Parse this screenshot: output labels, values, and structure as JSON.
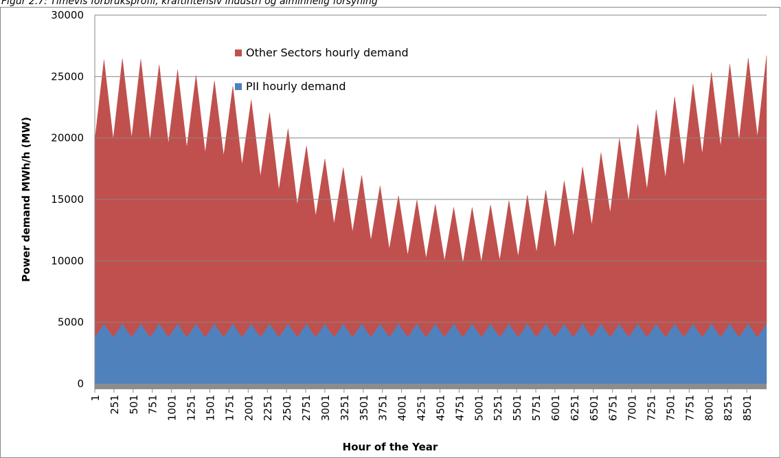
{
  "chart_data": {
    "type": "stacked_area",
    "title": "Figur 2.7: Timevis forbruksprofil, kraftintensiv industri og alminnelig forsyning",
    "xlabel": "Hour of the Year",
    "ylabel": "Power demand MWh/h (MW)",
    "x": [
      1,
      121,
      241,
      361,
      481,
      601,
      721,
      841,
      961,
      1081,
      1201,
      1321,
      1441,
      1561,
      1681,
      1801,
      1921,
      2041,
      2161,
      2281,
      2401,
      2521,
      2641,
      2761,
      2881,
      3001,
      3121,
      3241,
      3361,
      3481,
      3601,
      3721,
      3841,
      3961,
      4081,
      4201,
      4321,
      4441,
      4561,
      4681,
      4801,
      4921,
      5041,
      5161,
      5281,
      5401,
      5521,
      5641,
      5761,
      5881,
      6001,
      6121,
      6241,
      6361,
      6481,
      6601,
      6721,
      6841,
      6961,
      7081,
      7201,
      7321,
      7441,
      7561,
      7681,
      7801,
      7921,
      8041,
      8161,
      8281,
      8401,
      8521,
      8641,
      8760
    ],
    "series": [
      {
        "name": "PII hourly demand",
        "color": "#4f81bd",
        "values": [
          3800,
          4900,
          3800,
          4900,
          3800,
          4900,
          3800,
          4900,
          3800,
          4900,
          3800,
          4900,
          3800,
          4900,
          3800,
          4900,
          3800,
          4900,
          3800,
          4900,
          3800,
          4900,
          3800,
          4900,
          3800,
          4900,
          3800,
          4900,
          3800,
          4900,
          3800,
          4900,
          3800,
          4900,
          3800,
          4900,
          3800,
          4900,
          3800,
          4900,
          3800,
          4900,
          3800,
          4900,
          3800,
          4900,
          3800,
          4900,
          3800,
          4900,
          3800,
          4900,
          3800,
          4900,
          3800,
          4900,
          3800,
          4900,
          3800,
          4900,
          3800,
          4900,
          3800,
          4900,
          3800,
          4900,
          3800,
          4900,
          3800,
          4900,
          3800,
          4900,
          3800,
          4900
        ]
      },
      {
        "name": "Other Sectors hourly demand",
        "color": "#c0504d",
        "values": [
          16000,
          21450,
          16100,
          21550,
          16200,
          21500,
          16000,
          21050,
          15750,
          20650,
          15400,
          20200,
          15000,
          19750,
          14750,
          19300,
          14000,
          18200,
          13050,
          17150,
          11950,
          15850,
          10750,
          14450,
          9850,
          13400,
          9200,
          12700,
          8550,
          12050,
          7850,
          11200,
          7150,
          10400,
          6650,
          10050,
          6400,
          9700,
          6200,
          9450,
          6000,
          9450,
          6100,
          9650,
          6250,
          10000,
          6550,
          10450,
          6900,
          10850,
          7200,
          11600,
          8200,
          12750,
          9100,
          13900,
          10100,
          15050,
          11050,
          16200,
          12000,
          17400,
          12950,
          18450,
          13900,
          19500,
          14900,
          20450,
          15500,
          21100,
          16000,
          21600,
          16300,
          21800
        ]
      }
    ],
    "xlim": [
      1,
      8760
    ],
    "xticks": [
      1,
      251,
      501,
      751,
      1001,
      1251,
      1501,
      1751,
      2001,
      2251,
      2501,
      2751,
      3001,
      3251,
      3501,
      3751,
      4001,
      4251,
      4501,
      4751,
      5001,
      5251,
      5501,
      5751,
      6001,
      6251,
      6501,
      6751,
      7001,
      7251,
      7501,
      7751,
      8001,
      8251,
      8501
    ],
    "ylim": [
      0,
      30000
    ],
    "yticks": [
      0,
      5000,
      10000,
      15000,
      20000,
      25000,
      30000
    ],
    "grid": true
  }
}
